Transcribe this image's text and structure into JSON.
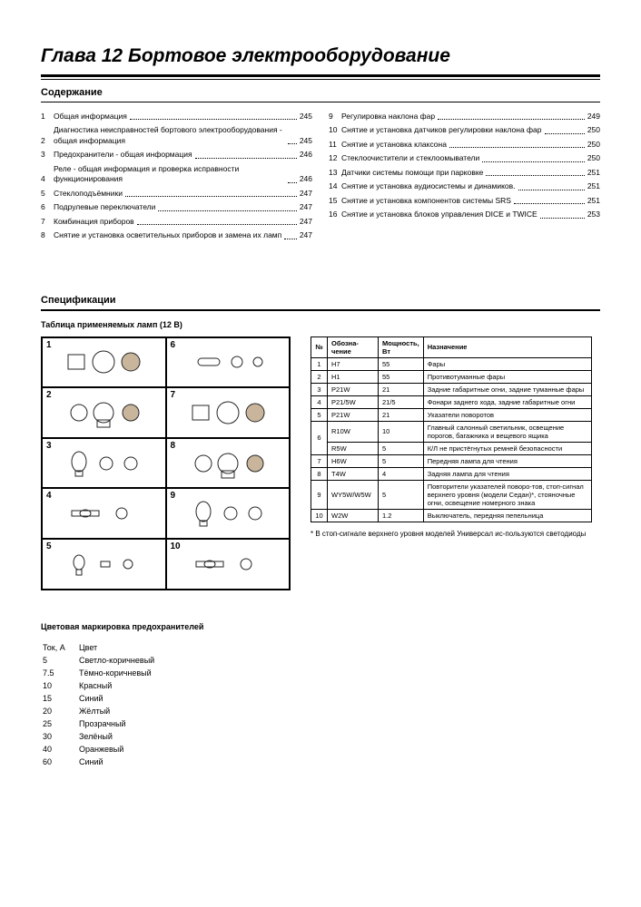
{
  "chapter_title": "Глава 12 Бортовое электрооборудование",
  "toc_heading": "Содержание",
  "toc_left": [
    {
      "n": "1",
      "t": "Общая информация",
      "p": "245"
    },
    {
      "n": "2",
      "t": "Диагностика неисправностей бортового электрооборудования - общая информация",
      "p": "245"
    },
    {
      "n": "3",
      "t": "Предохранители - общая информация",
      "p": "246"
    },
    {
      "n": "4",
      "t": "Реле - общая информация и проверка исправности функционирования",
      "p": "246"
    },
    {
      "n": "5",
      "t": "Стеклоподъёмники",
      "p": "247"
    },
    {
      "n": "6",
      "t": "Подрулевые переключатели",
      "p": "247"
    },
    {
      "n": "7",
      "t": "Комбинация приборов",
      "p": "247"
    },
    {
      "n": "8",
      "t": "Снятие и установка осветительных приборов и замена их ламп",
      "p": "247"
    }
  ],
  "toc_right": [
    {
      "n": "9",
      "t": "Регулировка наклона фар",
      "p": "249"
    },
    {
      "n": "10",
      "t": "Снятие и установка датчиков регулировки наклона фар",
      "p": "250"
    },
    {
      "n": "11",
      "t": "Снятие и установка клаксона",
      "p": "250"
    },
    {
      "n": "12",
      "t": "Стеклоочистители и стеклоомыватели",
      "p": "250"
    },
    {
      "n": "13",
      "t": "Датчики системы помощи при парковке",
      "p": "251"
    },
    {
      "n": "14",
      "t": "Снятие и установка аудиосистемы и динамиков.",
      "p": "251"
    },
    {
      "n": "15",
      "t": "Снятие и установка компонентов системы SRS",
      "p": "251"
    },
    {
      "n": "16",
      "t": "Снятие и установка блоков управления DICE и TWICE",
      "p": "253"
    }
  ],
  "spec_heading": "Спецификации",
  "lamp_caption": "Таблица применяемых ламп (12 В)",
  "lamp_cells": [
    "1",
    "2",
    "3",
    "4",
    "5",
    "6",
    "7",
    "8",
    "9",
    "10"
  ],
  "lamp_table": {
    "headers": [
      "№",
      "Обозна-\nчение",
      "Мощность,\nВт",
      "Назначение"
    ],
    "rows": [
      [
        "1",
        "H7",
        "55",
        "Фары"
      ],
      [
        "2",
        "H1",
        "55",
        "Противотуманные фары"
      ],
      [
        "3",
        "P21W",
        "21",
        "Задние габаритные огни, задние туманные фары"
      ],
      [
        "4",
        "P21/5W",
        "21/5",
        "Фонари заднего хода, задние габаритные огни"
      ],
      [
        "5",
        "P21W",
        "21",
        "Указатели поворотов"
      ],
      [
        "6",
        "R10W",
        "10",
        "Главный салонный светильник, освещение порогов, багажника и вещевого ящика"
      ],
      [
        "",
        "R5W",
        "5",
        "К/Л не пристёгнутых ремней безопасности"
      ],
      [
        "7",
        "H6W",
        "5",
        "Передняя лампа для чтения"
      ],
      [
        "8",
        "T4W",
        "4",
        "Задняя лампа для чтения"
      ],
      [
        "9",
        "WY5W/W5W",
        "5",
        "Повторители указателей поворо-тов, стоп-сигнал верхнего уровня (модели Седан)*, стояночные огни, освещение номерного знака"
      ],
      [
        "10",
        "W2W",
        "1.2",
        "Выключатель, передняя пепельница"
      ]
    ]
  },
  "footnote": "* В стоп-сигнале верхнего уровня моделей Универсал ис-пользуются светодиоды",
  "fuse_heading": "Цветовая маркировка предохранителей",
  "fuse_cols": [
    "Ток, А",
    "Цвет"
  ],
  "fuse_rows": [
    [
      "5",
      "Светло-коричневый"
    ],
    [
      "7.5",
      "Тёмно-коричневый"
    ],
    [
      "10",
      "Красный"
    ],
    [
      "15",
      "Синий"
    ],
    [
      "20",
      "Жёлтый"
    ],
    [
      "25",
      "Прозрачный"
    ],
    [
      "30",
      "Зелёный"
    ],
    [
      "40",
      "Оранжевый"
    ],
    [
      "60",
      "Синий"
    ]
  ],
  "colors": {
    "text": "#000000",
    "bg": "#ffffff",
    "rule": "#000000"
  }
}
